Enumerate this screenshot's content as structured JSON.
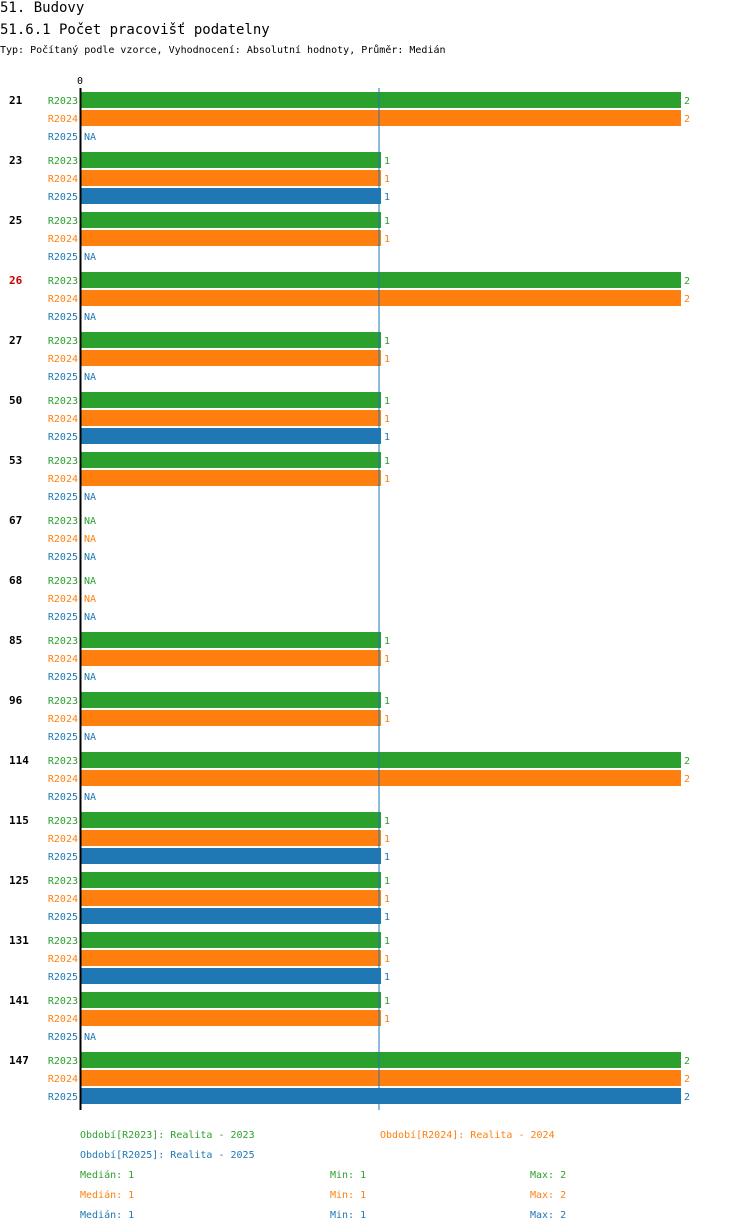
{
  "header": {
    "section": "51. Budovy",
    "title": "51.6.1 Počet pracovišť podatelny",
    "subtitle": "Typ: Počítaný podle vzorce, Vyhodnocení: Absolutní hodnoty, Průměr: Medián"
  },
  "colors": {
    "R2023": "#2ca02c",
    "R2024": "#ff7f0e",
    "R2025": "#1f77b4",
    "highlight": "#cc0000",
    "text": "#000000"
  },
  "chart_data": {
    "type": "bar",
    "orientation": "horizontal",
    "axis_zero_label": "0",
    "x_min": 0,
    "x_max": 2,
    "reference_line": 1,
    "na_label": "NA",
    "highlighted_category": "26",
    "categories": [
      "21",
      "23",
      "25",
      "26",
      "27",
      "50",
      "53",
      "67",
      "68",
      "85",
      "96",
      "114",
      "115",
      "125",
      "131",
      "141",
      "147"
    ],
    "series": [
      {
        "name": "R2023",
        "values": [
          2,
          1,
          1,
          2,
          1,
          1,
          1,
          null,
          null,
          1,
          1,
          2,
          1,
          1,
          1,
          1,
          2
        ]
      },
      {
        "name": "R2024",
        "values": [
          2,
          1,
          1,
          2,
          1,
          1,
          1,
          null,
          null,
          1,
          1,
          2,
          1,
          1,
          1,
          1,
          2
        ]
      },
      {
        "name": "R2025",
        "values": [
          null,
          1,
          null,
          null,
          null,
          1,
          null,
          null,
          null,
          null,
          null,
          null,
          1,
          1,
          1,
          null,
          2
        ]
      }
    ]
  },
  "legend": {
    "periods": [
      {
        "series": "R2023",
        "text": "Období[R2023]: Realita - 2023"
      },
      {
        "series": "R2024",
        "text": "Období[R2024]: Realita - 2024"
      },
      {
        "series": "R2025",
        "text": "Období[R2025]: Realita - 2025"
      }
    ],
    "stats": [
      {
        "series": "R2023",
        "median": "Medián: 1",
        "min": "Min: 1",
        "max": "Max: 2"
      },
      {
        "series": "R2024",
        "median": "Medián: 1",
        "min": "Min: 1",
        "max": "Max: 2"
      },
      {
        "series": "R2025",
        "median": "Medián: 1",
        "min": "Min: 1",
        "max": "Max: 2"
      }
    ]
  }
}
